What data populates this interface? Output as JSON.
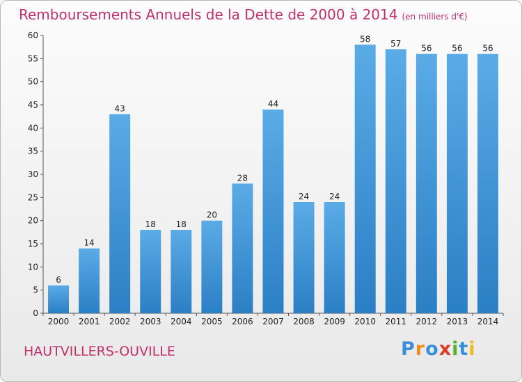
{
  "title": "Remboursements Annuels de la Dette de 2000 à 2014",
  "unit": "(en milliers d'€)",
  "commune": "HAUTVILLERS-OUVILLE",
  "logo": {
    "letters": [
      "P",
      "r",
      "o",
      "x",
      "i",
      "t",
      "i"
    ],
    "colors": [
      "#3a8fd8",
      "#f08a1c",
      "#3a8fd8",
      "#e03a2a",
      "#56b02e",
      "#3a8fd8",
      "#f0b81c"
    ]
  },
  "colors": {
    "bar_light": "#5aabe6",
    "bar_dark": "#2b7fc4",
    "title": "#c0306a"
  },
  "chart_data": {
    "type": "bar",
    "categories": [
      "2000",
      "2001",
      "2002",
      "2003",
      "2004",
      "2005",
      "2006",
      "2007",
      "2008",
      "2009",
      "2010",
      "2011",
      "2012",
      "2013",
      "2014"
    ],
    "values": [
      6,
      14,
      43,
      18,
      18,
      20,
      28,
      44,
      24,
      24,
      58,
      57,
      56,
      56,
      56
    ],
    "data_labels": [
      "6",
      "14",
      "43",
      "18",
      "18",
      "20",
      "28",
      "44",
      "24",
      "24",
      "58",
      "57",
      "56",
      "56",
      "56"
    ],
    "title": "Remboursements Annuels de la Dette de 2000 à 2014",
    "xlabel": "",
    "ylabel": "",
    "ylim": [
      0,
      60
    ],
    "yticks": [
      0,
      5,
      10,
      15,
      20,
      25,
      30,
      35,
      40,
      45,
      50,
      55,
      60
    ],
    "grid": false,
    "legend": "none"
  }
}
